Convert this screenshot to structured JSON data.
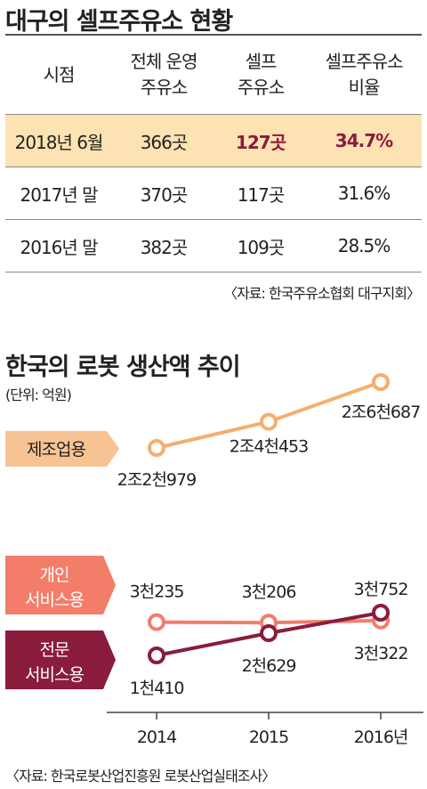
{
  "table_section": {
    "title": "대구의 셀프주유소 현황",
    "headers": [
      [
        "시점"
      ],
      [
        "전체 운영",
        "주유소"
      ],
      [
        "셀프",
        "주유소"
      ],
      [
        "셀프주유소",
        "비율"
      ]
    ],
    "rows": [
      {
        "period": "2018년 6월",
        "total": "366곳",
        "self": "127곳",
        "ratio": "34.7%",
        "highlight": true
      },
      {
        "period": "2017년 말",
        "total": "370곳",
        "self": "117곳",
        "ratio": "31.6%",
        "highlight": false
      },
      {
        "period": "2016년 말",
        "total": "382곳",
        "self": "109곳",
        "ratio": "28.5%",
        "highlight": false
      }
    ],
    "source": "〈자료: 한국주유소협회 대구지회〉"
  },
  "chart_section": {
    "title": "한국의 로봇 생산액 추이",
    "unit": "(단위: 억원)",
    "source": "〈자료: 한국로봇산업진흥원 로봇산업실태조사〉"
  },
  "chart_data": {
    "type": "line",
    "title": "한국의 로봇 생산액 추이",
    "unit": "억원",
    "x": [
      "2014",
      "2015",
      "2016년"
    ],
    "series": [
      {
        "name": "제조업용",
        "values": [
          22979,
          24453,
          26687
        ],
        "labels": [
          "2조2천979",
          "2조4천453",
          "2조6천687"
        ],
        "color": "#f5ae6e"
      },
      {
        "name": "개인 서비스용",
        "values": [
          3235,
          3206,
          3322
        ],
        "labels": [
          "3천235",
          "3천206",
          "3천322"
        ],
        "color": "#f27e6a"
      },
      {
        "name": "전문 서비스용",
        "values": [
          1410,
          2629,
          3752
        ],
        "labels": [
          "1천410",
          "2천629",
          "3천752"
        ],
        "color": "#8a1c3c"
      }
    ]
  }
}
